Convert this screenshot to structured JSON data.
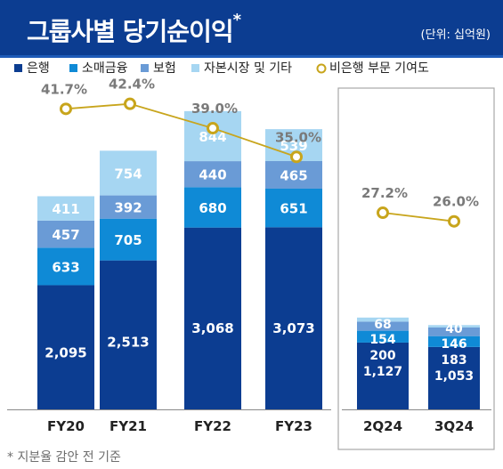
{
  "header": {
    "title": "그룹사별 당기순이익",
    "title_mark": "*",
    "unit": "(단위: 십억원)"
  },
  "footnote": "* 지분율 감안 전 기준",
  "chart_data": {
    "type": "bar",
    "stacked": true,
    "categories": [
      "FY20",
      "FY21",
      "FY22",
      "FY23",
      "2Q24",
      "3Q24"
    ],
    "highlighted_categories": [
      "2Q24",
      "3Q24"
    ],
    "series": [
      {
        "name": "은행",
        "color": "#0c3d91",
        "values": [
          2095,
          2513,
          3068,
          3073,
          1127,
          1053
        ]
      },
      {
        "name": "소매금융",
        "color": "#0f8ad6",
        "values": [
          633,
          705,
          680,
          651,
          200,
          183
        ]
      },
      {
        "name": "보험",
        "color": "#6a9bd6",
        "values": [
          457,
          392,
          440,
          465,
          154,
          146
        ]
      },
      {
        "name": "자본시장 및 기타",
        "color": "#a6d6f2",
        "values": [
          411,
          754,
          844,
          539,
          68,
          40
        ]
      }
    ],
    "value_labels": [
      [
        "2,095",
        "2,513",
        "3,068",
        "3,073",
        "1,127",
        "1,053"
      ],
      [
        "633",
        "705",
        "680",
        "651",
        "200",
        "183"
      ],
      [
        "457",
        "392",
        "440",
        "465",
        "154",
        "146"
      ],
      [
        "411",
        "754",
        "844",
        "539",
        "68",
        "40"
      ]
    ],
    "line": {
      "name": "비은행 부문 기여도",
      "color": "#c8a51c",
      "values": [
        41.7,
        42.4,
        39.0,
        35.0,
        27.2,
        26.0
      ],
      "labels": [
        "41.7%",
        "42.4%",
        "39.0%",
        "35.0%",
        "27.2%",
        "26.0%"
      ],
      "segments": [
        [
          0,
          3
        ],
        [
          4,
          5
        ]
      ]
    },
    "legend_position": "top-left",
    "grid": false
  }
}
